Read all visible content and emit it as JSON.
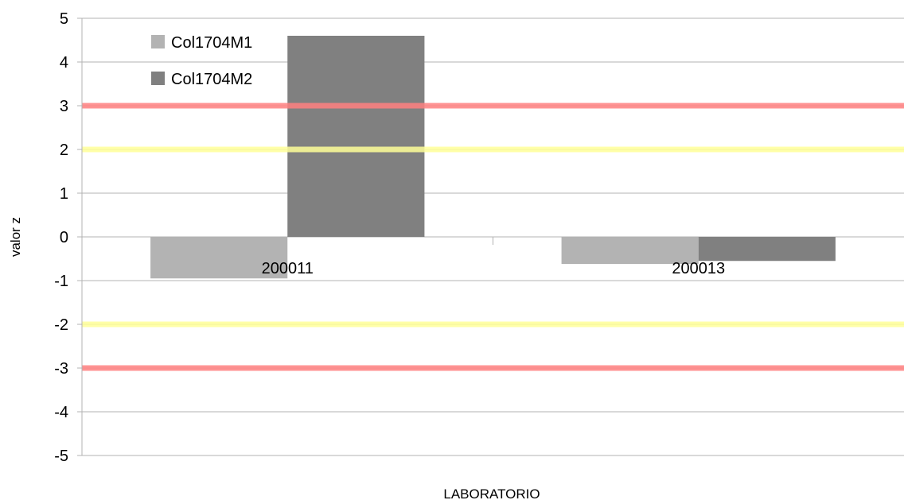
{
  "chart_data": {
    "type": "bar",
    "xlabel": "LABORATORIO",
    "ylabel": "valor z",
    "ylim": [
      -5,
      5
    ],
    "yticks": [
      5,
      4,
      3,
      2,
      1,
      0,
      -1,
      -2,
      -3,
      -4,
      -5
    ],
    "categories": [
      "200011",
      "200013"
    ],
    "series": [
      {
        "name": "Col1704M1",
        "values": [
          -0.95,
          -0.62
        ],
        "color": "#b3b3b3"
      },
      {
        "name": "Col1704M2",
        "values": [
          4.6,
          -0.55
        ],
        "color": "#808080"
      }
    ],
    "reference_lines": [
      {
        "value": 3,
        "color": "#ff8080"
      },
      {
        "value": -3,
        "color": "#ff8080"
      },
      {
        "value": 2,
        "color": "#ffff99"
      },
      {
        "value": -2,
        "color": "#ffff99"
      }
    ],
    "legend_position": "top-left",
    "grid": true
  }
}
